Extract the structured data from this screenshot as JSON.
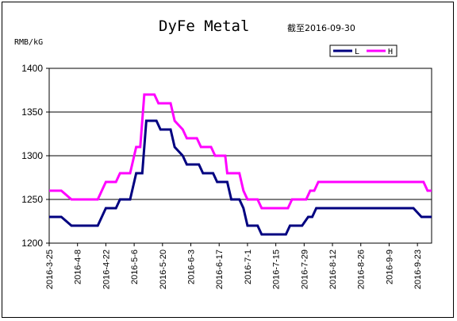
{
  "chart_data": {
    "type": "line",
    "title": "DyFe Metal",
    "subtitle": "截至2016-09-30",
    "ylabel": "RMB/kG",
    "xlabel": "",
    "ylim": [
      1200,
      1400
    ],
    "yticks": [
      1200,
      1250,
      1300,
      1350,
      1400
    ],
    "xticks": [
      "2016-3-25",
      "2016-4-8",
      "2016-4-22",
      "2016-5-6",
      "2016-5-20",
      "2016-6-3",
      "2016-6-17",
      "2016-7-1",
      "2016-7-15",
      "2016-7-29",
      "2016-8-12",
      "2016-8-26",
      "2016-9-9",
      "2016-9-23"
    ],
    "grid": "horizontal",
    "legend_position": "top-right",
    "x_start": "2016-03-25",
    "x_end": "2016-09-30",
    "series": [
      {
        "name": "L",
        "color": "#000080",
        "points": [
          [
            "2016-03-25",
            1230
          ],
          [
            "2016-03-31",
            1230
          ],
          [
            "2016-04-05",
            1220
          ],
          [
            "2016-04-18",
            1220
          ],
          [
            "2016-04-20",
            1230
          ],
          [
            "2016-04-22",
            1240
          ],
          [
            "2016-04-27",
            1240
          ],
          [
            "2016-04-29",
            1250
          ],
          [
            "2016-05-04",
            1250
          ],
          [
            "2016-05-07",
            1280
          ],
          [
            "2016-05-10",
            1280
          ],
          [
            "2016-05-12",
            1340
          ],
          [
            "2016-05-17",
            1340
          ],
          [
            "2016-05-19",
            1330
          ],
          [
            "2016-05-24",
            1330
          ],
          [
            "2016-05-26",
            1310
          ],
          [
            "2016-05-30",
            1300
          ],
          [
            "2016-06-01",
            1290
          ],
          [
            "2016-06-07",
            1290
          ],
          [
            "2016-06-09",
            1280
          ],
          [
            "2016-06-14",
            1280
          ],
          [
            "2016-06-16",
            1270
          ],
          [
            "2016-06-21",
            1270
          ],
          [
            "2016-06-23",
            1250
          ],
          [
            "2016-06-27",
            1250
          ],
          [
            "2016-06-29",
            1240
          ],
          [
            "2016-07-01",
            1220
          ],
          [
            "2016-07-06",
            1220
          ],
          [
            "2016-07-08",
            1210
          ],
          [
            "2016-07-20",
            1210
          ],
          [
            "2016-07-22",
            1220
          ],
          [
            "2016-07-28",
            1220
          ],
          [
            "2016-07-31",
            1230
          ],
          [
            "2016-08-02",
            1230
          ],
          [
            "2016-08-04",
            1240
          ],
          [
            "2016-09-21",
            1240
          ],
          [
            "2016-09-25",
            1230
          ],
          [
            "2016-09-30",
            1230
          ]
        ]
      },
      {
        "name": "H",
        "color": "#ff00ff",
        "points": [
          [
            "2016-03-25",
            1260
          ],
          [
            "2016-03-31",
            1260
          ],
          [
            "2016-04-05",
            1250
          ],
          [
            "2016-04-18",
            1250
          ],
          [
            "2016-04-20",
            1260
          ],
          [
            "2016-04-22",
            1270
          ],
          [
            "2016-04-27",
            1270
          ],
          [
            "2016-04-29",
            1280
          ],
          [
            "2016-05-04",
            1280
          ],
          [
            "2016-05-06",
            1300
          ],
          [
            "2016-05-07",
            1310
          ],
          [
            "2016-05-09",
            1310
          ],
          [
            "2016-05-11",
            1370
          ],
          [
            "2016-05-16",
            1370
          ],
          [
            "2016-05-18",
            1360
          ],
          [
            "2016-05-24",
            1360
          ],
          [
            "2016-05-26",
            1340
          ],
          [
            "2016-05-30",
            1330
          ],
          [
            "2016-06-01",
            1320
          ],
          [
            "2016-06-06",
            1320
          ],
          [
            "2016-06-08",
            1310
          ],
          [
            "2016-06-13",
            1310
          ],
          [
            "2016-06-15",
            1300
          ],
          [
            "2016-06-20",
            1300
          ],
          [
            "2016-06-21",
            1280
          ],
          [
            "2016-06-27",
            1280
          ],
          [
            "2016-06-29",
            1260
          ],
          [
            "2016-07-01",
            1250
          ],
          [
            "2016-07-06",
            1250
          ],
          [
            "2016-07-08",
            1240
          ],
          [
            "2016-07-21",
            1240
          ],
          [
            "2016-07-23",
            1250
          ],
          [
            "2016-07-30",
            1250
          ],
          [
            "2016-08-01",
            1260
          ],
          [
            "2016-08-03",
            1260
          ],
          [
            "2016-08-05",
            1270
          ],
          [
            "2016-09-26",
            1270
          ],
          [
            "2016-09-28",
            1260
          ],
          [
            "2016-09-30",
            1260
          ]
        ]
      }
    ]
  }
}
